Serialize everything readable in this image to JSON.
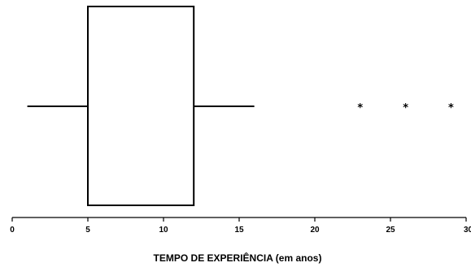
{
  "chart_data": {
    "type": "boxplot",
    "orientation": "horizontal",
    "xlabel": "TEMPO DE EXPERIÊNCIA (em anos)",
    "xlim": [
      0,
      30
    ],
    "xticks": [
      0,
      5,
      10,
      15,
      20,
      25,
      30
    ],
    "box": {
      "whisker_low": 1,
      "q1": 5,
      "q3": 12,
      "whisker_high": 16,
      "outliers": [
        23,
        26,
        29
      ]
    },
    "outlier_marker": "*",
    "grid": false,
    "legend": "none"
  }
}
